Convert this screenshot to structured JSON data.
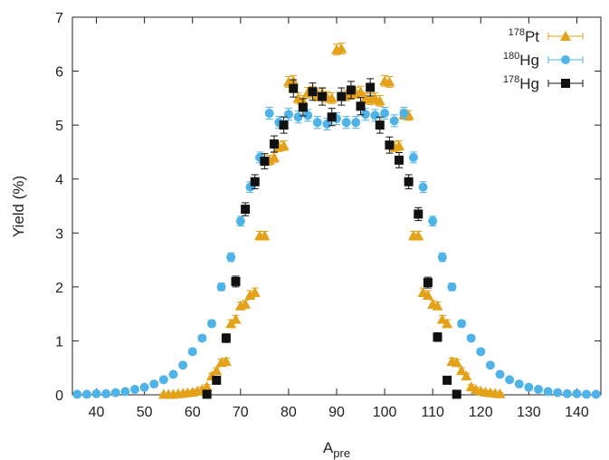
{
  "chart_data": {
    "type": "scatter",
    "xlabel": "A",
    "xlabel_subscript": "pre",
    "ylabel": "Yield (%)",
    "xlim": [
      35,
      145
    ],
    "ylim": [
      0,
      7
    ],
    "xticks": [
      40,
      50,
      60,
      70,
      80,
      90,
      100,
      110,
      120,
      130,
      140
    ],
    "yticks": [
      0,
      1,
      2,
      3,
      4,
      5,
      6,
      7
    ],
    "grid": false,
    "legend_position": "top-right",
    "series": [
      {
        "name": "Pt",
        "mass_number": "178",
        "marker": "triangle",
        "color": "#E3A21A",
        "x": [
          54,
          55,
          56,
          57,
          58,
          59,
          60,
          61,
          62,
          63,
          64,
          65,
          66,
          67,
          68,
          69,
          70,
          71,
          72,
          73,
          74,
          75,
          76,
          77,
          78,
          79,
          80,
          81,
          82,
          83,
          84,
          85,
          86,
          87,
          88,
          89,
          90,
          91,
          92,
          93,
          94,
          95,
          96,
          97,
          98,
          99,
          100,
          101,
          102,
          103,
          104,
          105,
          106,
          107,
          108,
          109,
          110,
          111,
          112,
          113,
          114,
          115,
          116,
          117,
          118,
          119,
          120,
          121,
          122,
          123,
          124
        ],
        "y": [
          0.01,
          0.01,
          0.01,
          0.02,
          0.03,
          0.04,
          0.05,
          0.07,
          0.1,
          0.15,
          0.35,
          0.45,
          0.6,
          0.62,
          1.32,
          1.4,
          1.65,
          1.68,
          1.85,
          1.9,
          2.95,
          2.95,
          4.35,
          4.4,
          4.6,
          4.62,
          5.8,
          5.82,
          5.5,
          5.45,
          5.6,
          5.62,
          5.55,
          5.58,
          5.52,
          5.5,
          6.4,
          6.42,
          5.55,
          5.58,
          5.6,
          5.62,
          5.5,
          5.48,
          5.5,
          5.45,
          5.82,
          5.8,
          4.6,
          4.62,
          5.2,
          5.18,
          2.95,
          2.95,
          1.9,
          1.85,
          1.68,
          1.65,
          1.4,
          1.32,
          0.62,
          0.6,
          0.45,
          0.35,
          0.15,
          0.1,
          0.07,
          0.05,
          0.04,
          0.03,
          0.02
        ],
        "error": [
          0.02,
          0.02,
          0.02,
          0.02,
          0.02,
          0.03,
          0.03,
          0.03,
          0.04,
          0.04,
          0.05,
          0.05,
          0.06,
          0.06,
          0.07,
          0.07,
          0.07,
          0.07,
          0.08,
          0.08,
          0.08,
          0.08,
          0.09,
          0.09,
          0.09,
          0.09,
          0.1,
          0.1,
          0.1,
          0.1,
          0.1,
          0.1,
          0.1,
          0.1,
          0.1,
          0.1,
          0.1,
          0.1,
          0.1,
          0.1,
          0.1,
          0.1,
          0.1,
          0.1,
          0.1,
          0.1,
          0.1,
          0.1,
          0.09,
          0.09,
          0.09,
          0.09,
          0.08,
          0.08,
          0.08,
          0.08,
          0.07,
          0.07,
          0.07,
          0.07,
          0.06,
          0.06,
          0.05,
          0.05,
          0.04,
          0.04,
          0.03,
          0.03,
          0.03,
          0.02,
          0.02
        ]
      },
      {
        "name": "Hg",
        "mass_number": "180",
        "marker": "circle",
        "color": "#4FB3E8",
        "x": [
          36,
          38,
          40,
          42,
          44,
          46,
          48,
          50,
          52,
          54,
          56,
          58,
          60,
          62,
          64,
          66,
          68,
          70,
          72,
          74,
          76,
          78,
          80,
          82,
          84,
          86,
          88,
          90,
          92,
          94,
          96,
          98,
          100,
          102,
          104,
          106,
          108,
          110,
          112,
          114,
          116,
          118,
          120,
          122,
          124,
          126,
          128,
          130,
          132,
          134,
          136,
          138,
          140,
          142,
          144
        ],
        "y": [
          0.01,
          0.01,
          0.02,
          0.02,
          0.04,
          0.06,
          0.1,
          0.14,
          0.2,
          0.28,
          0.38,
          0.55,
          0.8,
          1.05,
          1.32,
          2.0,
          2.55,
          3.22,
          3.85,
          4.4,
          5.22,
          5.05,
          5.2,
          5.15,
          5.18,
          5.05,
          5.02,
          5.12,
          5.05,
          5.05,
          5.2,
          5.18,
          5.22,
          5.08,
          5.22,
          4.4,
          3.85,
          3.22,
          2.55,
          2.0,
          1.32,
          1.05,
          0.8,
          0.55,
          0.38,
          0.28,
          0.2,
          0.14,
          0.1,
          0.06,
          0.04,
          0.02,
          0.02,
          0.01,
          0.01
        ],
        "error": [
          0.02,
          0.02,
          0.02,
          0.02,
          0.02,
          0.02,
          0.03,
          0.03,
          0.03,
          0.03,
          0.04,
          0.04,
          0.05,
          0.05,
          0.06,
          0.07,
          0.08,
          0.09,
          0.1,
          0.1,
          0.11,
          0.11,
          0.11,
          0.11,
          0.11,
          0.11,
          0.11,
          0.11,
          0.11,
          0.11,
          0.11,
          0.11,
          0.11,
          0.11,
          0.11,
          0.1,
          0.1,
          0.09,
          0.08,
          0.07,
          0.06,
          0.05,
          0.05,
          0.04,
          0.04,
          0.03,
          0.03,
          0.03,
          0.03,
          0.02,
          0.02,
          0.02,
          0.02,
          0.02,
          0.02
        ]
      },
      {
        "name": "Hg",
        "mass_number": "178",
        "marker": "square",
        "color": "#111111",
        "x": [
          63,
          65,
          67,
          69,
          71,
          73,
          75,
          77,
          79,
          81,
          83,
          85,
          87,
          89,
          91,
          93,
          95,
          97,
          99,
          101,
          103,
          105,
          107,
          109,
          111,
          113,
          115
        ],
        "y": [
          0.01,
          0.27,
          1.05,
          2.1,
          3.44,
          3.95,
          4.33,
          4.65,
          5.0,
          5.68,
          5.33,
          5.62,
          5.53,
          5.15,
          5.53,
          5.65,
          5.35,
          5.7,
          5.0,
          4.63,
          4.35,
          3.95,
          3.35,
          2.08,
          1.07,
          0.27,
          0.01
        ],
        "error": [
          0.03,
          0.06,
          0.08,
          0.1,
          0.12,
          0.13,
          0.14,
          0.15,
          0.15,
          0.16,
          0.16,
          0.16,
          0.16,
          0.16,
          0.16,
          0.16,
          0.16,
          0.16,
          0.15,
          0.15,
          0.14,
          0.13,
          0.12,
          0.1,
          0.08,
          0.06,
          0.03
        ]
      }
    ]
  }
}
